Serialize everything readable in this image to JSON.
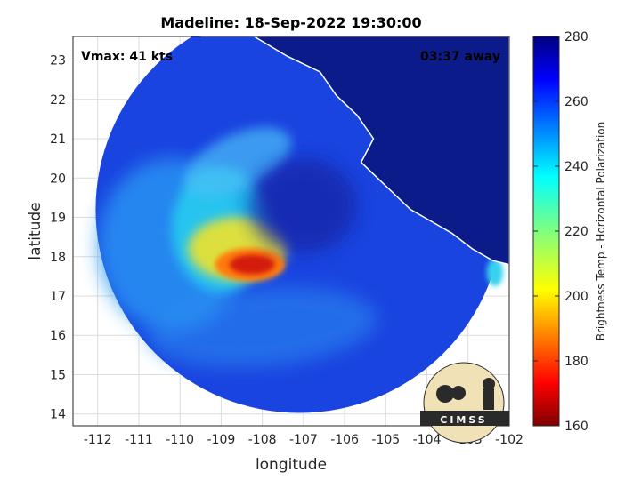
{
  "chart_data": {
    "type": "heatmap",
    "title": "Madeline: 18-Sep-2022 19:30:00",
    "xlabel": "longitude",
    "ylabel": "latitude",
    "xlim": [
      -112.6,
      -102
    ],
    "ylim": [
      13.7,
      23.6
    ],
    "xticks": [
      -112,
      -111,
      -110,
      -109,
      -108,
      -107,
      -106,
      -105,
      -104,
      -103,
      -102
    ],
    "yticks": [
      14,
      15,
      16,
      17,
      18,
      19,
      20,
      21,
      22,
      23
    ],
    "grid": true,
    "annotations": {
      "vmax": "Vmax: 41 kts",
      "time_away": "03:37 away"
    },
    "colorbar": {
      "label": "Brightness Temp - Horizontal Polarization",
      "range": [
        160,
        280
      ],
      "ticks": [
        160,
        180,
        200,
        220,
        240,
        260,
        280
      ],
      "colormap": "jet"
    },
    "storm_center": {
      "lon": -107.1,
      "lat": 19.2
    },
    "swath_radius_deg": 4.95,
    "cold_core": {
      "lon": -108.3,
      "lat": 17.8,
      "min_temp": 175
    },
    "logo_text": "CIMSS"
  },
  "colors": {
    "background": "#ffffff",
    "swath_base": "#1a44e0",
    "land_outline": "#ffffff"
  }
}
